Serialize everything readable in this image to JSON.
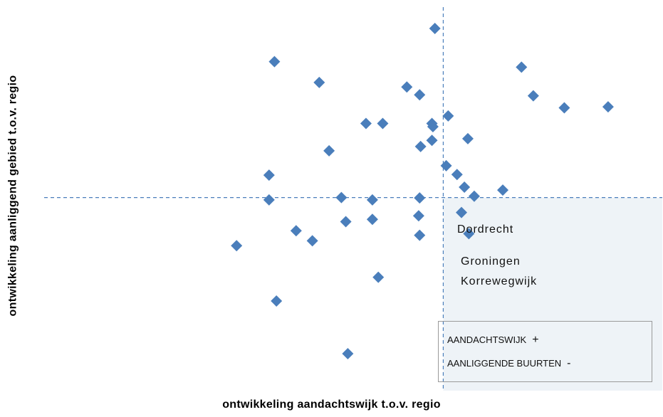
{
  "chart_data": {
    "type": "scatter",
    "xlabel": "ontwikkeling aandachtswijk  t.o.v. regio",
    "ylabel": "ontwikkeling aanliggend  gebied t.o.v. regio",
    "xlim": [
      0,
      100
    ],
    "ylim": [
      0,
      100
    ],
    "grid": false,
    "reference_lines": {
      "x": 62,
      "y": 48
    },
    "marker_color": "#4a7ebb",
    "highlight_quadrant_color": "#eef3f7",
    "points": [
      {
        "x": 60.3,
        "y": 100
      },
      {
        "x": 27.7,
        "y": 89.8
      },
      {
        "x": 77.9,
        "y": 88.1
      },
      {
        "x": 36.8,
        "y": 83.4
      },
      {
        "x": 54.6,
        "y": 82.0
      },
      {
        "x": 57.2,
        "y": 79.6
      },
      {
        "x": 80.3,
        "y": 79.3
      },
      {
        "x": 86.6,
        "y": 75.6
      },
      {
        "x": 95.5,
        "y": 75.9
      },
      {
        "x": 63.0,
        "y": 73.1
      },
      {
        "x": 46.3,
        "y": 70.8
      },
      {
        "x": 49.7,
        "y": 70.8
      },
      {
        "x": 59.7,
        "y": 70.8
      },
      {
        "x": 59.9,
        "y": 69.8
      },
      {
        "x": 67.0,
        "y": 66.1
      },
      {
        "x": 59.7,
        "y": 65.6
      },
      {
        "x": 57.4,
        "y": 63.7
      },
      {
        "x": 38.8,
        "y": 62.4
      },
      {
        "x": 62.6,
        "y": 57.8
      },
      {
        "x": 64.8,
        "y": 55.1
      },
      {
        "x": 26.6,
        "y": 54.9
      },
      {
        "x": 66.3,
        "y": 51.2
      },
      {
        "x": 74.1,
        "y": 50.3
      },
      {
        "x": 68.3,
        "y": 48.4
      },
      {
        "x": 26.6,
        "y": 47.3
      },
      {
        "x": 41.3,
        "y": 48.0
      },
      {
        "x": 47.6,
        "y": 47.3
      },
      {
        "x": 57.2,
        "y": 47.9
      },
      {
        "x": 65.7,
        "y": 43.4
      },
      {
        "x": 57.0,
        "y": 42.4
      },
      {
        "x": 47.6,
        "y": 41.3
      },
      {
        "x": 42.2,
        "y": 40.6
      },
      {
        "x": 32.1,
        "y": 37.8
      },
      {
        "x": 67.2,
        "y": 36.9
      },
      {
        "x": 57.2,
        "y": 36.4
      },
      {
        "x": 35.4,
        "y": 34.7
      },
      {
        "x": 20.0,
        "y": 33.2
      },
      {
        "x": 48.8,
        "y": 23.5
      },
      {
        "x": 28.1,
        "y": 16.2
      },
      {
        "x": 42.6,
        "y": 0.0
      }
    ]
  },
  "annotations": {
    "dordrecht": "Dordrecht",
    "groningen": "Groningen",
    "korrewegwijk": "Korrewegwijk"
  },
  "legend": {
    "row1_label": "AANDACHTSWIJK",
    "row1_sign": "+",
    "row2_label": "AANLIGGENDE BUURTEN",
    "row2_sign": "-"
  }
}
